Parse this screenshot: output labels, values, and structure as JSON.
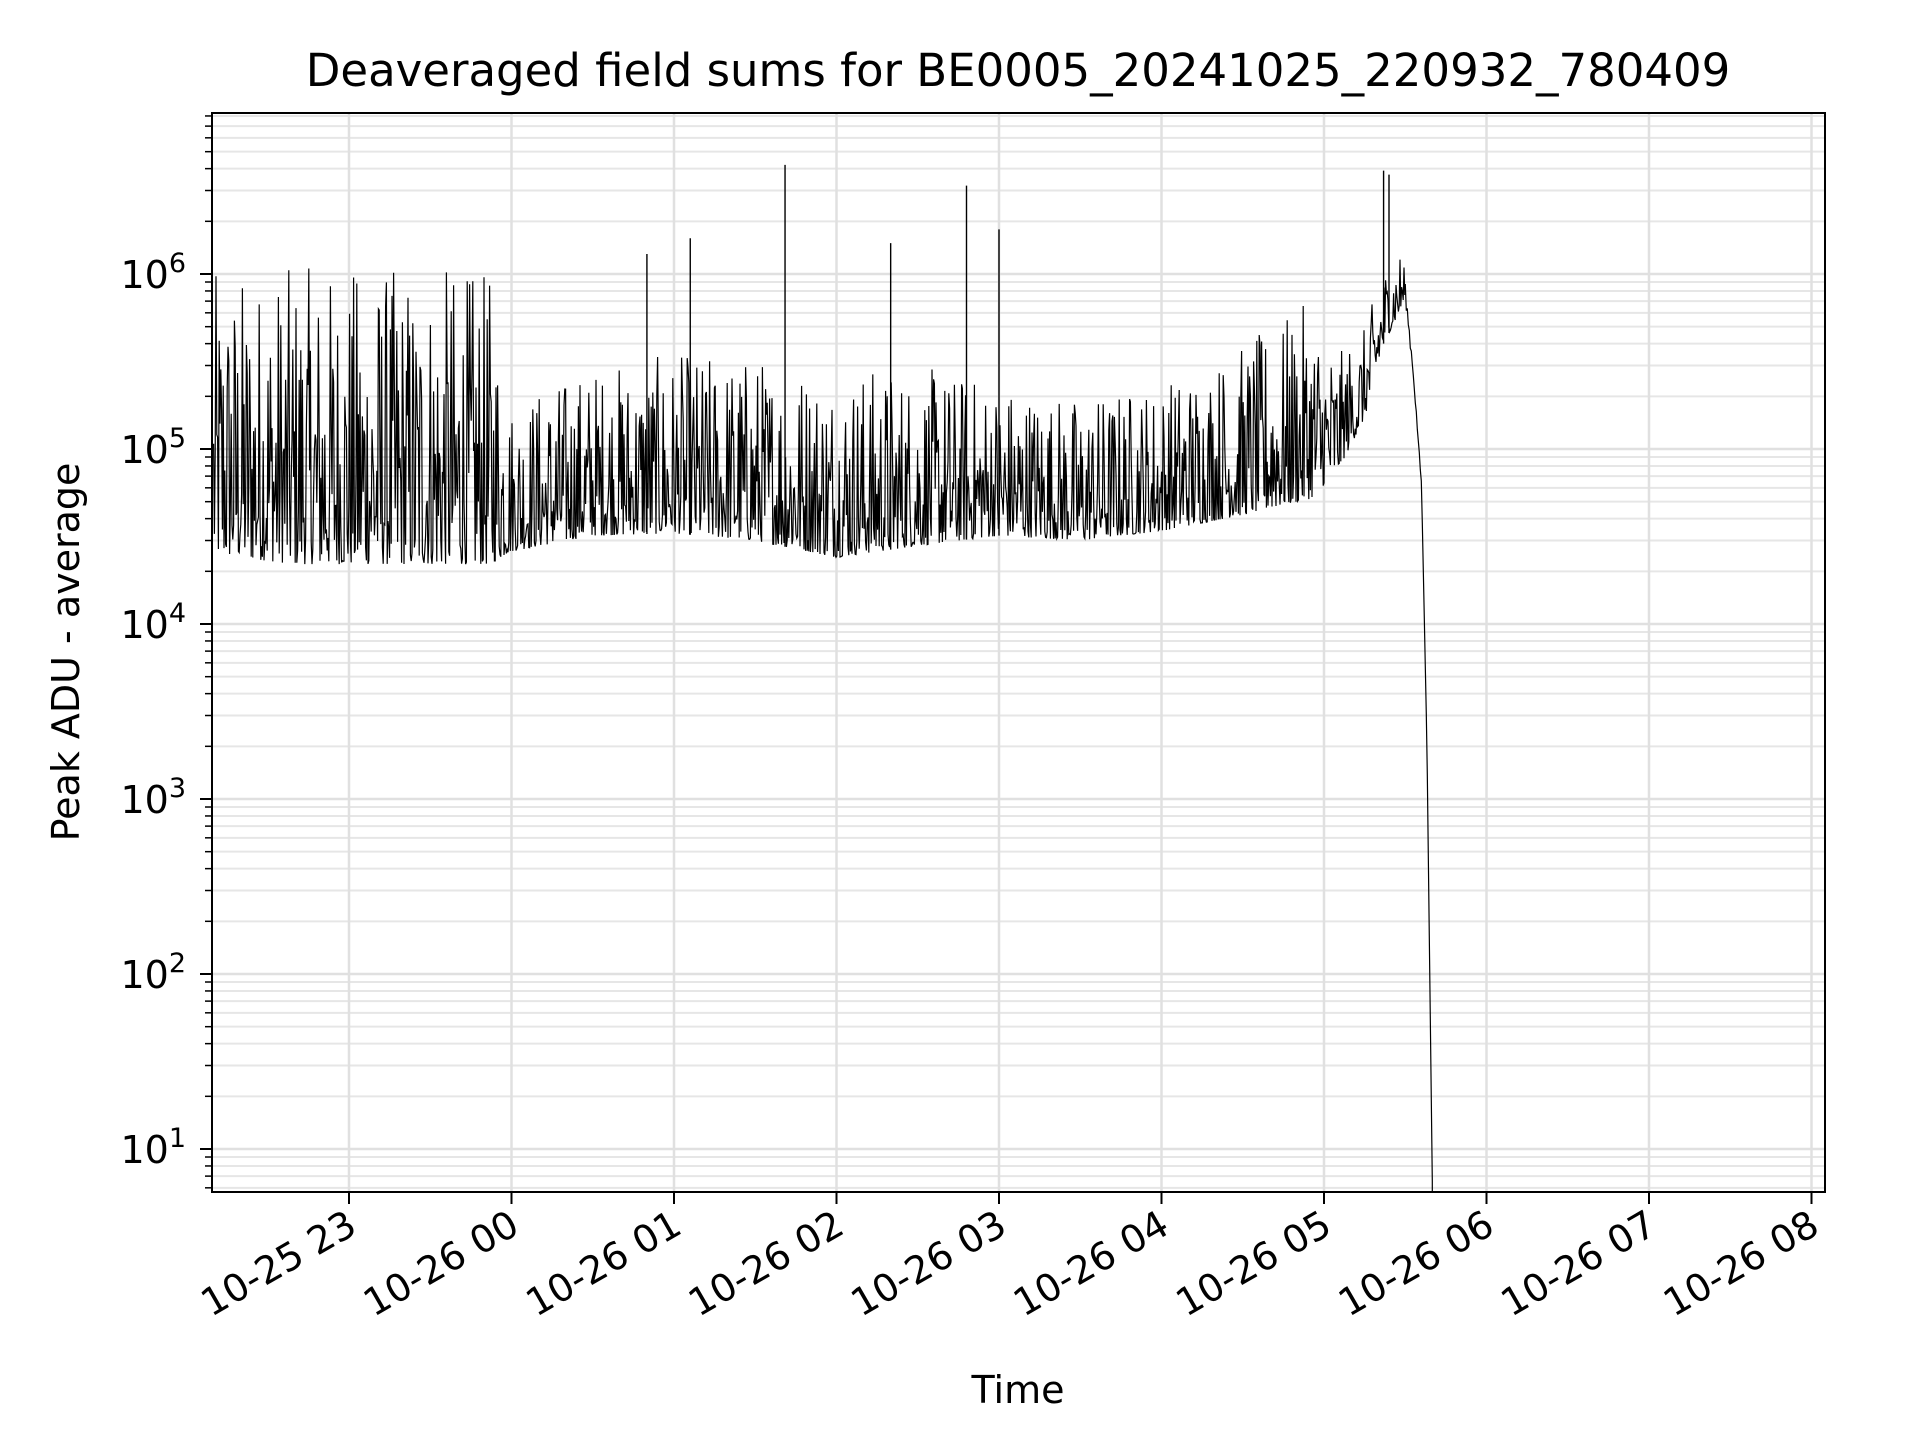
{
  "chart_data": {
    "type": "line",
    "title": "Deaveraged field sums for BE0005_20241025_220932_780409",
    "xlabel": "Time",
    "ylabel": "Peak ADU - average",
    "y_scale": "log",
    "ylim": [
      5.5,
      8000000
    ],
    "xlim": [
      "2024-10-25 22:09",
      "2024-10-26 08:08"
    ],
    "grid": true,
    "x_tick_labels": [
      "10-25 23",
      "10-26 00",
      "10-26 01",
      "10-26 02",
      "10-26 03",
      "10-26 04",
      "10-26 05",
      "10-26 06",
      "10-26 07",
      "10-26 08"
    ],
    "y_tick_labels": [
      {
        "base": "10",
        "exp": "1"
      },
      {
        "base": "10",
        "exp": "2"
      },
      {
        "base": "10",
        "exp": "3"
      },
      {
        "base": "10",
        "exp": "4"
      },
      {
        "base": "10",
        "exp": "5"
      },
      {
        "base": "10",
        "exp": "6"
      }
    ],
    "series": [
      {
        "color": "#000000",
        "profile": {
          "x": [
            "2024-10-25 22:10",
            "2024-10-25 22:40",
            "2024-10-25 23:10",
            "2024-10-25 23:40",
            "2024-10-25 23:52",
            "2024-10-26 00:00",
            "2024-10-26 00:30",
            "2024-10-26 01:00",
            "2024-10-26 01:30",
            "2024-10-26 02:00",
            "2024-10-26 02:30",
            "2024-10-26 03:00",
            "2024-10-26 03:30",
            "2024-10-26 04:00",
            "2024-10-26 04:30",
            "2024-10-26 04:55",
            "2024-10-26 05:05",
            "2024-10-26 05:15",
            "2024-10-26 05:22",
            "2024-10-26 05:30",
            "2024-10-26 05:33",
            "2024-10-26 05:36",
            "2024-10-26 05:38",
            "2024-10-26 05:40"
          ],
          "low": [
            25000,
            22000,
            22000,
            22000,
            22000,
            26000,
            32000,
            33000,
            30000,
            24000,
            28000,
            32000,
            30000,
            34000,
            42000,
            52000,
            75000,
            150000,
            400000,
            700000,
            250000,
            60000,
            2000,
            6
          ],
          "high": [
            1000000,
            1100000,
            1100000,
            1100000,
            1000000,
            200000,
            300000,
            350000,
            350000,
            300000,
            300000,
            250000,
            200000,
            250000,
            400000,
            700000,
            350000,
            500000,
            1100000,
            1500000,
            400000,
            70000,
            2000,
            6
          ]
        },
        "peaks": [
          {
            "x": "2024-10-26 01:41",
            "y": 4200000
          },
          {
            "x": "2024-10-26 02:48",
            "y": 3200000
          },
          {
            "x": "2024-10-26 03:00",
            "y": 1800000
          },
          {
            "x": "2024-10-26 05:22",
            "y": 3900000
          },
          {
            "x": "2024-10-26 05:24",
            "y": 3700000
          },
          {
            "x": "2024-10-26 01:06",
            "y": 1600000
          },
          {
            "x": "2024-10-26 00:50",
            "y": 1300000
          },
          {
            "x": "2024-10-26 02:20",
            "y": 1500000
          }
        ]
      }
    ]
  }
}
